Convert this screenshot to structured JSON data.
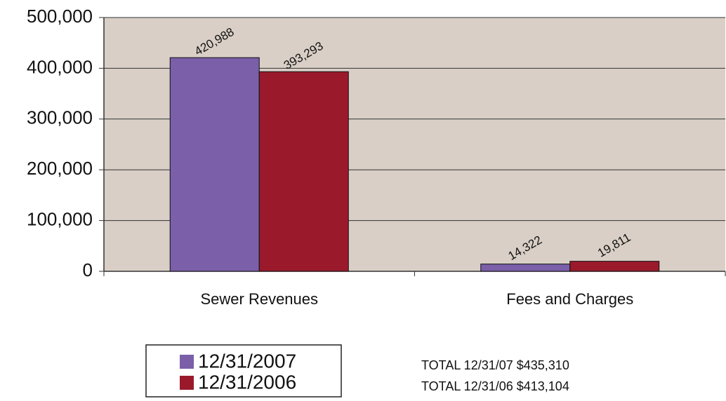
{
  "chart_data": {
    "type": "bar",
    "categories": [
      "Sewer Revenues",
      "Fees and Charges"
    ],
    "series": [
      {
        "name": "12/31/2007",
        "color": "#7b5fa9",
        "values": [
          420988,
          14322
        ],
        "value_labels": [
          "420,988",
          "14,322"
        ]
      },
      {
        "name": "12/31/2006",
        "color": "#9a1a2b",
        "values": [
          393293,
          19811
        ],
        "value_labels": [
          "393,293",
          "19,811"
        ]
      }
    ],
    "ylim": [
      0,
      500000
    ],
    "yticks": [
      0,
      {
        "value": 100000,
        "label": "100,000"
      },
      {
        "value": 200000,
        "label": "200,000"
      },
      {
        "value": 300000,
        "label": "300,000"
      },
      {
        "value": 400000,
        "label": "400,000"
      },
      {
        "value": 500000,
        "label": "500,000"
      }
    ],
    "grid": true,
    "legend": "bottom-left",
    "annotations": [
      "TOTAL 12/31/07 $435,310",
      "TOTAL 12/31/06 $413,104"
    ]
  }
}
